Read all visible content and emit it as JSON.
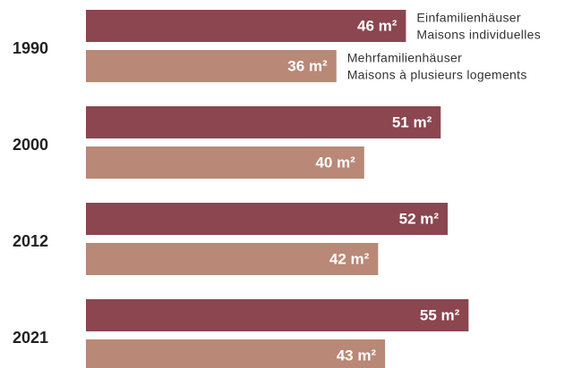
{
  "chart_data": {
    "type": "bar",
    "orientation": "horizontal",
    "categories": [
      "1990",
      "2000",
      "2012",
      "2021"
    ],
    "series": [
      {
        "name": [
          "Einfamilienhäuser",
          "Maisons individuelles"
        ],
        "color": "#8b4650",
        "values": [
          46,
          51,
          52,
          55
        ],
        "value_labels": [
          "46 m²",
          "51 m²",
          "52 m²",
          "55 m²"
        ]
      },
      {
        "name": [
          "Mehrfamilienhäuser",
          "Maisons à plusieurs logements"
        ],
        "color": "#b98877",
        "values": [
          36,
          40,
          42,
          43
        ],
        "value_labels": [
          "36 m²",
          "40 m²",
          "42 m²",
          "43 m²"
        ]
      }
    ]
  }
}
